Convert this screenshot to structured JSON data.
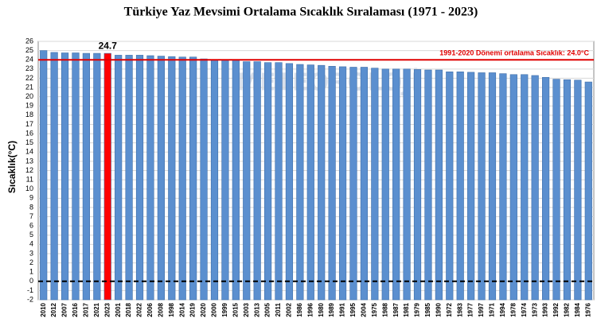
{
  "chart_data": {
    "type": "bar",
    "title": "Türkiye Yaz Mevsimi Ortalama Sıcaklık Sıralaması (1971 - 2023)",
    "y_label": "Sıcaklık(°C)",
    "watermark": "METEOROLOJİ",
    "categories": [
      "2010",
      "2012",
      "2007",
      "2016",
      "2017",
      "2021",
      "2023",
      "2001",
      "2018",
      "2022",
      "2006",
      "2008",
      "1998",
      "2014",
      "2019",
      "2020",
      "2000",
      "1999",
      "2015",
      "2003",
      "2013",
      "2005",
      "2011",
      "2002",
      "1986",
      "1996",
      "1980",
      "1989",
      "1991",
      "1995",
      "2004",
      "1975",
      "1988",
      "1987",
      "1981",
      "1979",
      "1985",
      "1990",
      "1972",
      "1983",
      "1977",
      "1997",
      "1971",
      "1994",
      "1978",
      "1974",
      "1973",
      "1993",
      "1992",
      "1982",
      "1984",
      "1976"
    ],
    "values": [
      25.0,
      24.8,
      24.75,
      24.75,
      24.7,
      24.7,
      24.7,
      24.5,
      24.5,
      24.5,
      24.45,
      24.4,
      24.35,
      24.3,
      24.3,
      24.1,
      24.0,
      24.0,
      24.0,
      23.8,
      23.8,
      23.7,
      23.7,
      23.6,
      23.5,
      23.45,
      23.4,
      23.3,
      23.25,
      23.2,
      23.2,
      23.1,
      23.0,
      23.0,
      23.0,
      22.95,
      22.9,
      22.9,
      22.7,
      22.7,
      22.65,
      22.6,
      22.6,
      22.5,
      22.4,
      22.4,
      22.3,
      22.1,
      21.9,
      21.85,
      21.8,
      21.6
    ],
    "color": "#5b8fcf",
    "highlight": "2023",
    "highlight_color": "#ff0000",
    "reference_line": {
      "value": 24.0,
      "label": "1991-2020 Dönemi ortalama Sıcaklık: 24.0°C",
      "color": "#e00000"
    },
    "zero_line": true,
    "ylim": [
      -2,
      26
    ],
    "yticks": [
      -2,
      -1,
      0,
      1,
      2,
      3,
      4,
      5,
      6,
      7,
      8,
      9,
      10,
      11,
      12,
      13,
      14,
      15,
      16,
      17,
      18,
      19,
      20,
      21,
      22,
      23,
      24,
      25,
      26
    ],
    "grid": true
  }
}
